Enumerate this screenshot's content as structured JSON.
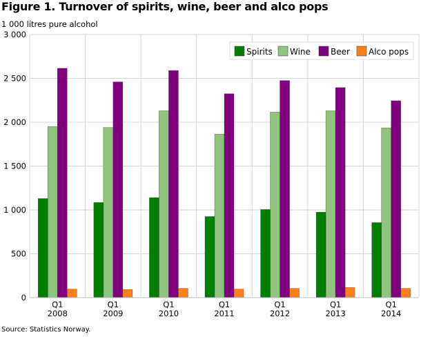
{
  "chart_data": {
    "type": "bar",
    "title": "Figure 1. Turnover of spirits, wine, beer and alco pops",
    "ylabel": "1 000 litres pure alcohol",
    "source": "Source: Statistics Norway.",
    "categories": [
      [
        "Q1",
        "2008"
      ],
      [
        "Q1",
        "2009"
      ],
      [
        "Q1",
        "2010"
      ],
      [
        "Q1",
        "2011"
      ],
      [
        "Q1",
        "2012"
      ],
      [
        "Q1",
        "2013"
      ],
      [
        "Q1",
        "2014"
      ]
    ],
    "ylim": [
      0,
      3000
    ],
    "yticks": [
      0,
      500,
      1000,
      1500,
      2000,
      2500,
      3000
    ],
    "ytick_labels": [
      "0",
      "500",
      "1 000",
      "1 500",
      "2 000",
      "2 500",
      "3 000"
    ],
    "grid": true,
    "legend_position": "top-right",
    "series": [
      {
        "name": "Spirits",
        "color": "#008000",
        "values": [
          1130,
          1085,
          1140,
          925,
          1005,
          975,
          855
        ]
      },
      {
        "name": "Wine",
        "color": "#90c47e",
        "values": [
          1950,
          1940,
          2130,
          1865,
          2115,
          2130,
          1935
        ]
      },
      {
        "name": "Beer",
        "color": "#800080",
        "values": [
          2615,
          2460,
          2590,
          2325,
          2475,
          2395,
          2245
        ]
      },
      {
        "name": "Alco pops",
        "color": "#ff7f1a",
        "values": [
          97,
          92,
          105,
          97,
          105,
          115,
          105
        ]
      }
    ]
  }
}
